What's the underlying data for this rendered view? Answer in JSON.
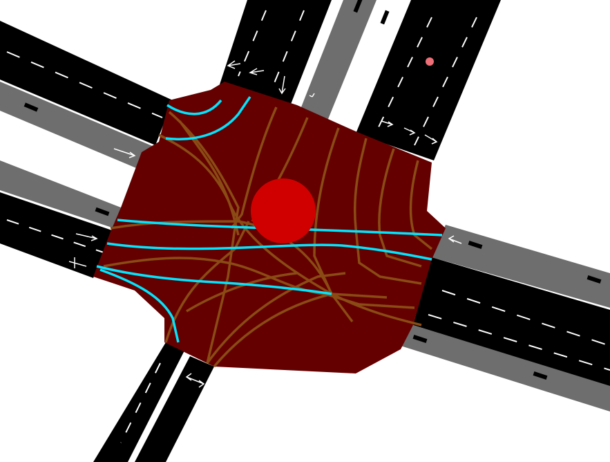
{
  "view": {
    "kind": "traffic-simulation-intersection"
  },
  "colors": {
    "background": "#ffffff",
    "road": "#000000",
    "bike_lane": "#6e6e6e",
    "lane_marking": "#ffffff",
    "junction": "#640000",
    "vehicle_link": "#8a4b14",
    "pedestrian_link": "#00e6ff",
    "junction_marker": "#d10000",
    "point_marker": "#ef6f78"
  },
  "layers": {
    "bike_symbols": [
      {
        "id": "bike-nw-1"
      },
      {
        "id": "bike-n-1"
      },
      {
        "id": "bike-n-2"
      },
      {
        "id": "bike-w-1"
      },
      {
        "id": "bike-e-1"
      },
      {
        "id": "bike-e-2"
      },
      {
        "id": "bike-s-1"
      },
      {
        "id": "bike-s-2"
      }
    ],
    "markers": [
      {
        "id": "junction-center",
        "type": "junction"
      },
      {
        "id": "vehicle-point",
        "type": "point"
      }
    ]
  }
}
